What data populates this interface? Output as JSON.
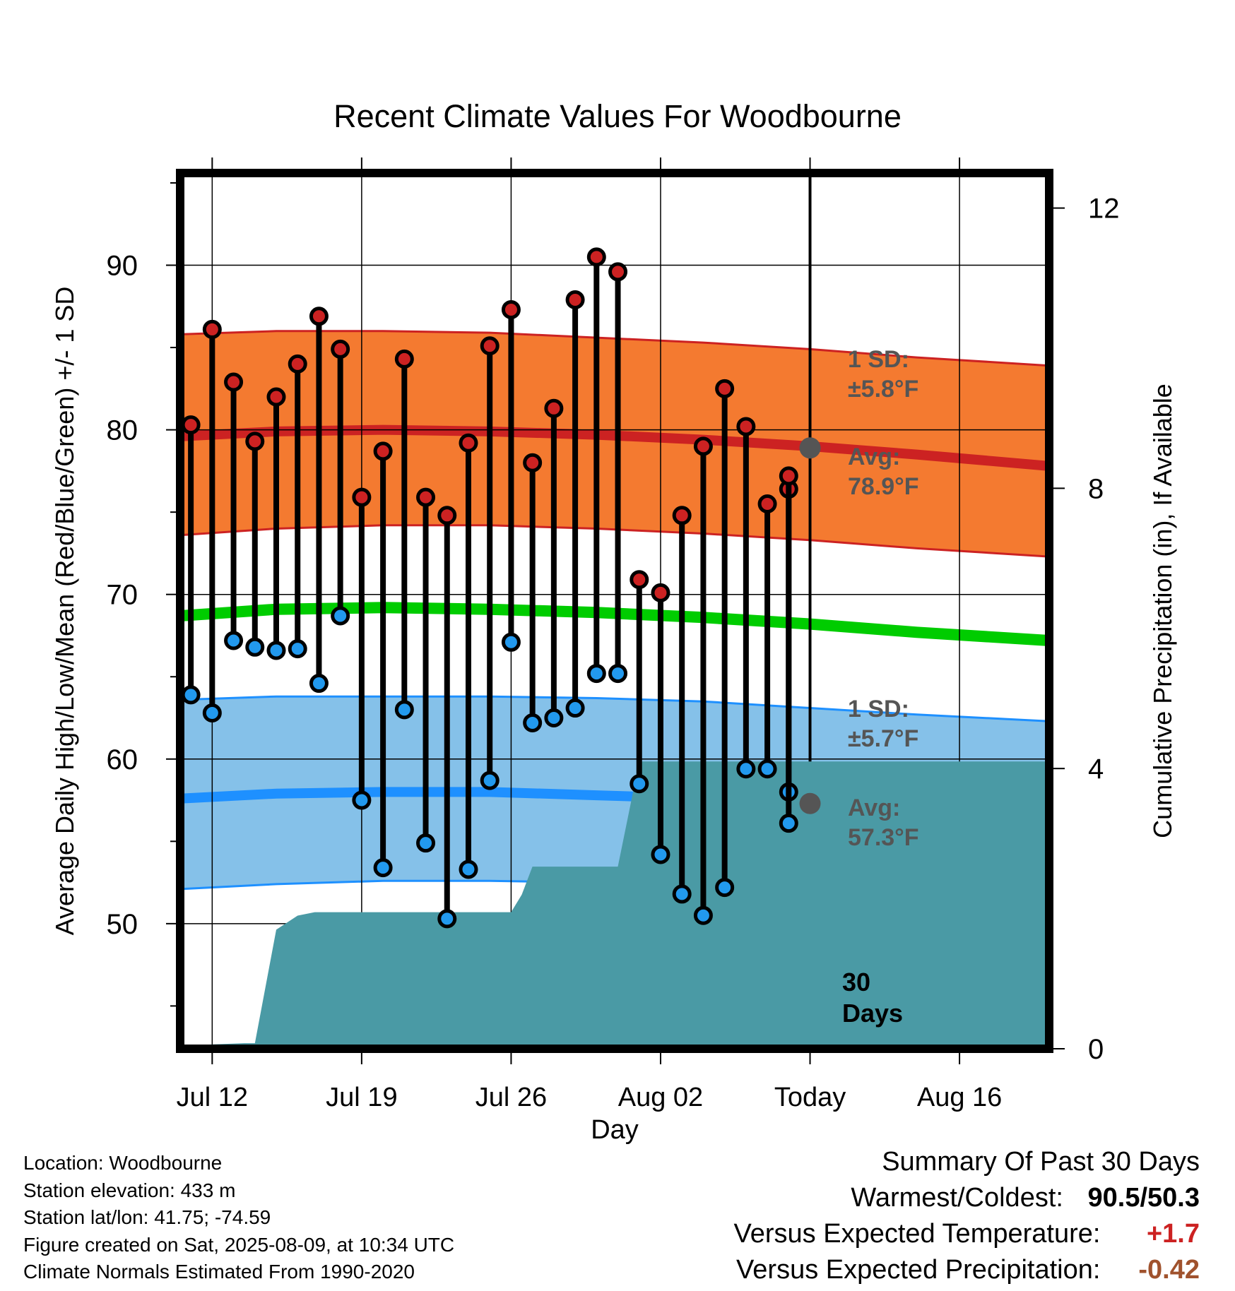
{
  "title": "Recent Climate Values For Woodbourne",
  "ylabel_left": "Average Daily High/Low/Mean (Red/Blue/Green) +/- 1 SD",
  "ylabel_right": "Cumulative Precipitation (in), If Available",
  "xlabel": "Day",
  "today_label": "30 Days",
  "band_labels": {
    "high_sd": [
      "1 SD:",
      "±5.8°F"
    ],
    "high_avg": [
      "Avg:",
      "78.9°F"
    ],
    "low_sd": [
      "1 SD:",
      "±5.7°F"
    ],
    "low_avg": [
      "Avg:",
      "57.3°F"
    ]
  },
  "footer": {
    "location": "Location: Woodbourne",
    "elevation": "Station elevation: 433 m",
    "latlon": "Station lat/lon: 41.75; -74.59",
    "created": "Figure created on Sat, 2025-08-09, at 10:34 UTC",
    "normals": "Climate Normals Estimated From 1990-2020"
  },
  "summary": {
    "heading": "Summary Of Past 30 Days",
    "warm_cold_label": "Warmest/Coldest:",
    "warm_cold_value": "90.5/50.3",
    "temp_label": "Versus Expected Temperature:",
    "temp_value": "+1.7",
    "precip_label": "Versus Expected Precipitation:",
    "precip_value": "-0.42"
  },
  "colors": {
    "high_dot": "#cc2222",
    "low_dot": "#2299ee",
    "high_band": "#f47a30",
    "high_mean": "#cc2222",
    "low_band": "#85c1e9",
    "low_mean": "#1e90ff",
    "mean_line": "#00cc00",
    "precip_fill": "#4a9aa5",
    "avg_marker": "#555555",
    "temp_anomaly": "#cc2222",
    "precip_anomaly": "#a0522d"
  },
  "chart_data": {
    "type": "line",
    "x_start": "Jul 10",
    "x_ticks": [
      "Jul 12",
      "Jul 19",
      "Jul 26",
      "Aug 02",
      "Today",
      "Aug 16"
    ],
    "x_tick_days": [
      2,
      9,
      16,
      23,
      30,
      37
    ],
    "x_range_days": [
      0.5,
      41.2
    ],
    "today_day": 30,
    "ylim_left": [
      42.4,
      95.6
    ],
    "yticks_left": [
      50,
      60,
      70,
      80,
      90
    ],
    "ylim_right": [
      0,
      12.5
    ],
    "yticks_right": [
      0,
      4,
      8,
      12
    ],
    "daily": {
      "days": [
        1,
        2,
        3,
        4,
        5,
        6,
        7,
        8,
        9,
        10,
        11,
        12,
        13,
        14,
        15,
        16,
        17,
        18,
        19,
        20,
        21,
        22,
        23,
        24,
        25,
        26,
        27,
        28,
        29
      ],
      "high": [
        80.3,
        86.1,
        82.9,
        79.3,
        82.0,
        84.0,
        86.9,
        84.9,
        75.9,
        78.7,
        84.3,
        75.9,
        74.8,
        79.2,
        85.1,
        87.3,
        78.0,
        81.3,
        87.9,
        90.5,
        89.6,
        70.9,
        70.1,
        74.8,
        79.0,
        82.5,
        80.2,
        75.5,
        76.4
      ],
      "low": [
        63.9,
        62.8,
        67.2,
        66.8,
        66.6,
        66.7,
        64.6,
        68.7,
        57.5,
        53.4,
        63.0,
        54.9,
        50.3,
        53.3,
        58.7,
        67.1,
        62.2,
        62.5,
        63.1,
        65.2,
        65.2,
        58.5,
        54.2,
        51.8,
        50.5,
        52.2,
        59.4,
        59.4,
        58.0
      ],
      "extra_low": {
        "day": 30,
        "low": 56.1,
        "high": 77.2
      }
    },
    "normals": {
      "days": [
        0.5,
        5,
        10,
        15,
        20,
        25,
        30,
        35,
        41.2
      ],
      "high_mean": [
        79.6,
        79.9,
        80.0,
        79.9,
        79.7,
        79.4,
        79.0,
        78.5,
        77.8
      ],
      "high_upper": [
        85.8,
        86.0,
        86.0,
        85.9,
        85.6,
        85.3,
        84.9,
        84.4,
        83.9
      ],
      "high_lower": [
        73.6,
        74.0,
        74.2,
        74.2,
        74.0,
        73.7,
        73.3,
        72.8,
        72.3
      ],
      "mean": [
        68.7,
        69.1,
        69.2,
        69.1,
        68.9,
        68.6,
        68.2,
        67.7,
        67.2
      ],
      "low_mean": [
        57.6,
        57.9,
        58.0,
        58.0,
        57.8,
        57.6,
        57.2,
        56.8,
        56.2
      ],
      "low_upper": [
        63.6,
        63.8,
        63.8,
        63.8,
        63.7,
        63.5,
        63.1,
        62.7,
        62.3
      ],
      "low_lower": [
        52.1,
        52.4,
        52.6,
        52.6,
        52.5,
        52.3,
        51.9,
        51.3,
        50.6
      ]
    },
    "precip_cumulative": {
      "days": [
        0.5,
        1.0,
        3.5,
        4.0,
        5.0,
        6.0,
        6.8,
        7.0,
        16.0,
        16.5,
        17.0,
        18.0,
        20.5,
        21.0,
        22.0,
        22.5,
        41.2
      ],
      "values": [
        0.0,
        0.05,
        0.08,
        0.08,
        1.7,
        1.9,
        1.95,
        1.95,
        1.95,
        2.2,
        2.6,
        2.6,
        2.6,
        2.6,
        4.1,
        4.1,
        4.1
      ]
    },
    "today_avg_markers": {
      "high": 78.9,
      "low": 57.3
    }
  }
}
